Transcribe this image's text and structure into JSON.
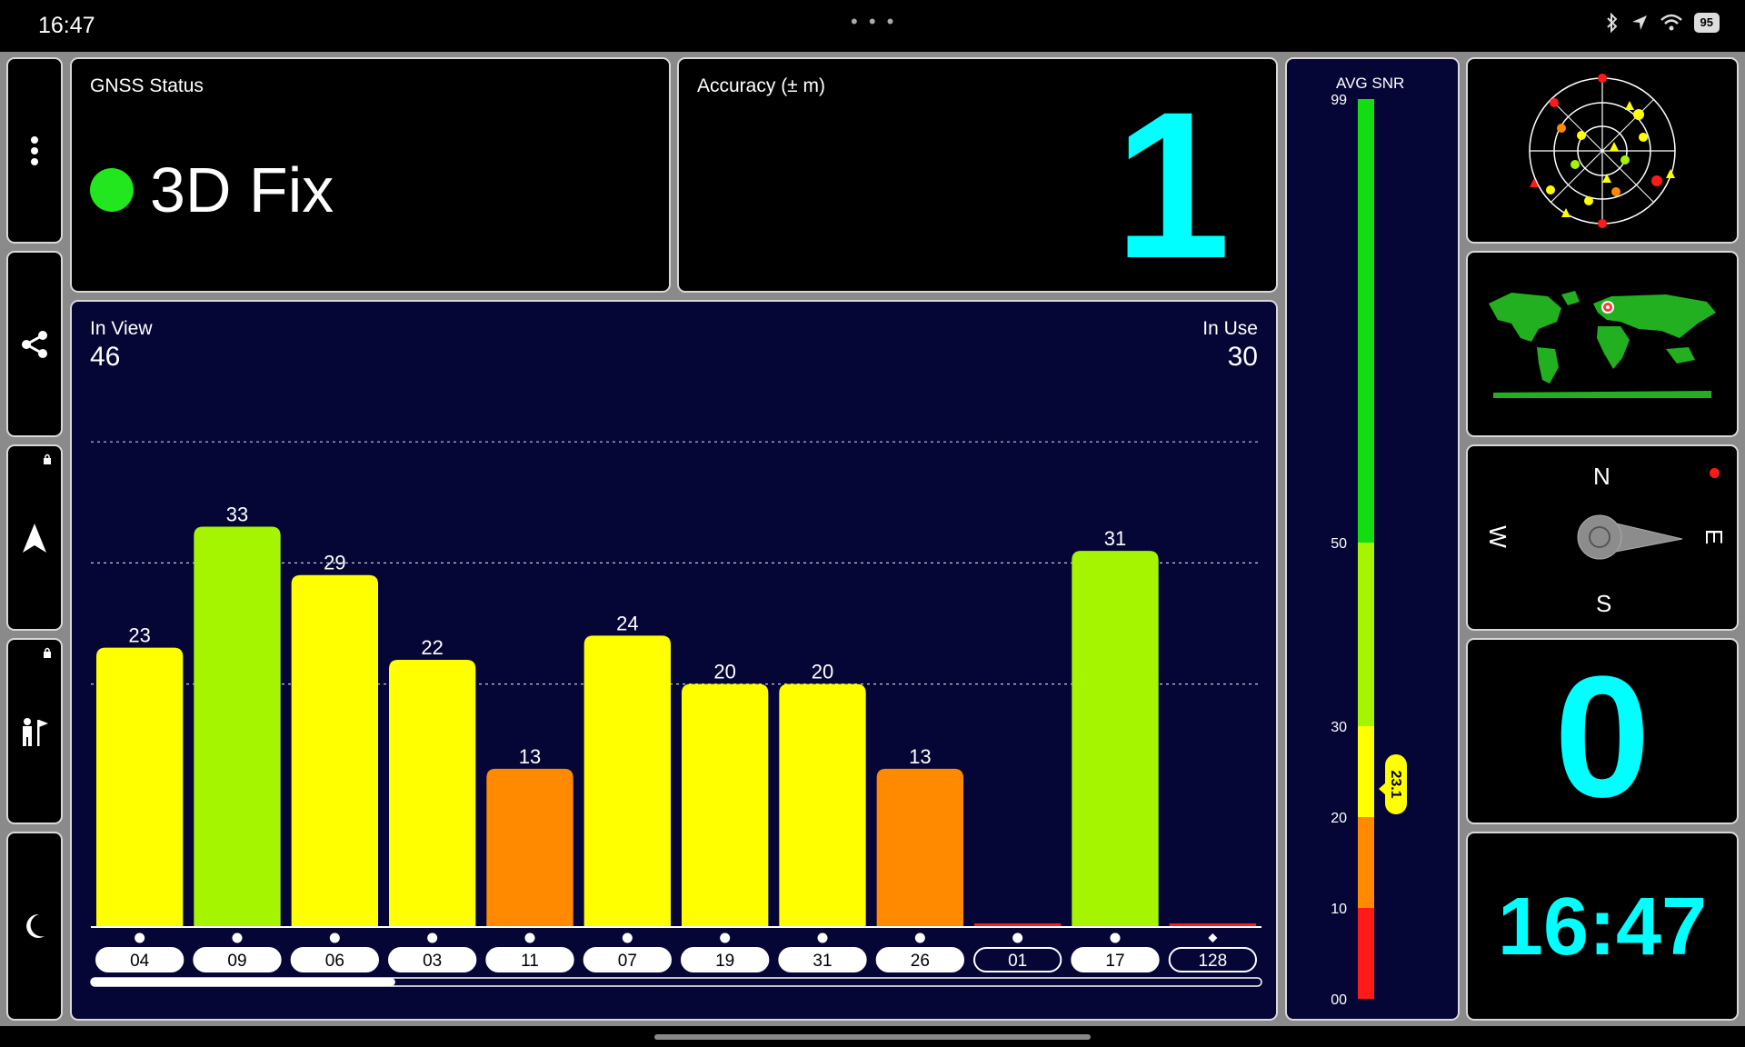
{
  "status_bar": {
    "time": "16:47",
    "battery": "95",
    "icons": [
      "bluetooth-icon",
      "location-arrow-icon",
      "wifi-icon",
      "battery-icon"
    ]
  },
  "sidebar": {
    "items": [
      {
        "icon": "more-vertical-icon"
      },
      {
        "icon": "share-icon"
      },
      {
        "icon": "navigation-arrow-icon",
        "locked": true
      },
      {
        "icon": "person-flag-icon",
        "locked": true
      },
      {
        "icon": "moon-icon"
      }
    ]
  },
  "gnss_status": {
    "title": "GNSS Status",
    "value": "3D Fix",
    "indicator_color": "#22e61e"
  },
  "accuracy": {
    "title": "Accuracy (± m)",
    "value": "1"
  },
  "satellites": {
    "in_view_label": "In View",
    "in_view": "46",
    "in_use_label": "In Use",
    "in_use": "30"
  },
  "chart_data": {
    "type": "bar",
    "categories": [
      "04",
      "09",
      "06",
      "03",
      "11",
      "07",
      "19",
      "31",
      "26",
      "01",
      "17",
      "128"
    ],
    "values": [
      23,
      33,
      29,
      22,
      13,
      24,
      20,
      20,
      13,
      0,
      31,
      0
    ],
    "value_labels": [
      "23",
      "33",
      "29",
      "22",
      "13",
      "24",
      "20",
      "20",
      "13",
      "",
      "31",
      ""
    ],
    "bar_colors": [
      "#ffff00",
      "#a6f500",
      "#ffff00",
      "#ffff00",
      "#ff8a00",
      "#ffff00",
      "#ffff00",
      "#ffff00",
      "#ff8a00",
      "#ff1a1a",
      "#a6f500",
      "#ff1a1a"
    ],
    "in_use": [
      true,
      true,
      true,
      true,
      true,
      true,
      true,
      true,
      true,
      false,
      true,
      false
    ],
    "markers": [
      "dot",
      "dot",
      "dot",
      "dot",
      "dot",
      "dot",
      "dot",
      "dot",
      "dot",
      "dot",
      "dot",
      "diamond"
    ],
    "ylim": [
      0,
      50
    ],
    "gridlines": [
      20,
      30,
      40
    ],
    "scroll_fraction": 0.26
  },
  "snr_meter": {
    "title": "AVG SNR",
    "ticks": [
      "99",
      "50",
      "30",
      "20",
      "10",
      "00"
    ],
    "tick_values": [
      99,
      50,
      30,
      20,
      10,
      0
    ],
    "avg_value": 23.1,
    "avg_label": "23.1",
    "segments": [
      {
        "from": 0,
        "to": 10,
        "color": "#ff1a1a"
      },
      {
        "from": 10,
        "to": 20,
        "color": "#ff8a00"
      },
      {
        "from": 20,
        "to": 30,
        "color": "#ffff00"
      },
      {
        "from": 30,
        "to": 50,
        "color": "#a6f500"
      },
      {
        "from": 50,
        "to": 99,
        "color": "#11dd11"
      }
    ]
  },
  "right_panels": {
    "skyplot_icon": "skyplot-icon",
    "worldmap_icon": "world-map-icon",
    "compass": {
      "n": "N",
      "s": "S",
      "e": "E",
      "w": "W",
      "indicator_color": "#ff1a1a"
    },
    "speed_value": "0",
    "clock_value": "16:47"
  }
}
